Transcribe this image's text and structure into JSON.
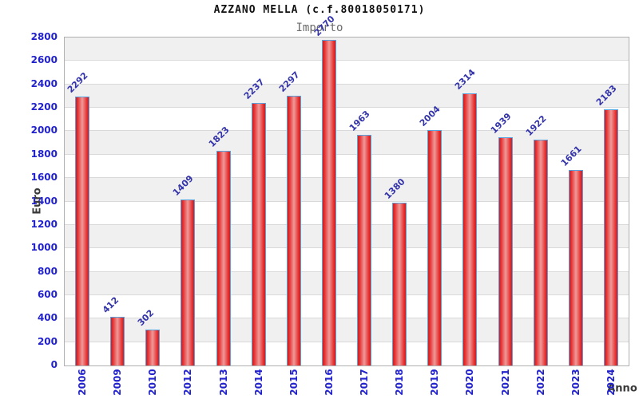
{
  "chart_data": {
    "type": "bar",
    "title": "AZZANO MELLA (c.f.80018050171)",
    "subtitle": "Importo",
    "xlabel": "Anno",
    "ylabel": "Euro",
    "categories": [
      "2006",
      "2009",
      "2010",
      "2012",
      "2013",
      "2014",
      "2015",
      "2016",
      "2017",
      "2018",
      "2019",
      "2020",
      "2021",
      "2022",
      "2023",
      "2024"
    ],
    "values": [
      2292,
      412,
      302,
      1409,
      1823,
      2237,
      2297,
      2770,
      1963,
      1380,
      2004,
      2314,
      1939,
      1922,
      1661,
      2183
    ],
    "ylim": [
      0,
      2800
    ],
    "ytick_step": 200,
    "yticks": [
      0,
      200,
      400,
      600,
      800,
      1000,
      1200,
      1400,
      1600,
      1800,
      2000,
      2200,
      2400,
      2600,
      2800
    ],
    "grid": "horizontal gridlines with alternating shaded bands",
    "legend": "none",
    "colors": {
      "bar_fill_edge": "#cf1f1f",
      "bar_fill_highlight": "#ef9a9a",
      "bar_border": "#58a2de",
      "value_label": "#3333aa",
      "tick_label": "#2222cc",
      "axis_title": "#3a3a3a",
      "band": "#f0f0f0",
      "gridline": "#d9d9d9",
      "plot_border": "#b0b0b0",
      "title": "#111111",
      "subtitle": "#6b6b6b"
    }
  }
}
